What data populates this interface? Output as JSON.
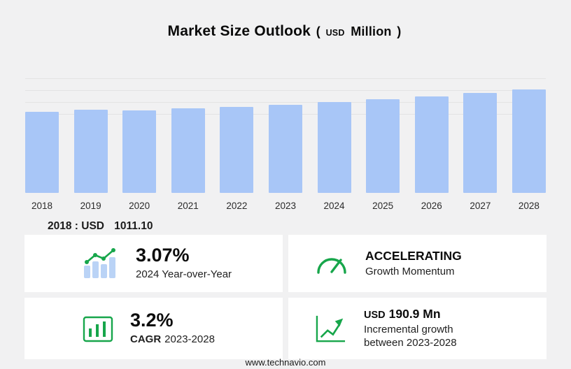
{
  "title": {
    "text": "Market Size Outlook",
    "open_paren": "(",
    "currency": "USD",
    "unit": "Million",
    "close_paren": ")"
  },
  "chart_data": {
    "type": "bar",
    "title": "Market Size Outlook (USD Million)",
    "categories": [
      "2018",
      "2019",
      "2020",
      "2021",
      "2022",
      "2023",
      "2024",
      "2025",
      "2026",
      "2027",
      "2028"
    ],
    "values": [
      1011.1,
      1040.0,
      1033.0,
      1055.0,
      1078.0,
      1100.3,
      1134.1,
      1169.0,
      1206.0,
      1247.0,
      1291.2
    ],
    "unit": "USD Million",
    "xlabel": "",
    "ylabel": "",
    "ylim": [
      0,
      1450
    ],
    "grid": true,
    "legend": "none",
    "bar_color": "#a8c6f7",
    "notes": "Only 2018 value labeled on screen (2018 : USD 1011.10); later values estimated from bar heights, 3.07% 2024 YoY, 3.2% CAGR 2023-2028, USD 190.9 Mn incremental growth 2023-2028"
  },
  "annotation": {
    "year_label": "2018 : USD",
    "value": "1011.10"
  },
  "stats": {
    "yoy": {
      "value": "3.07%",
      "label": "2024 Year-over-Year",
      "icon": "yoy-trend-icon"
    },
    "momentum": {
      "value": "ACCELERATING",
      "label": "Growth Momentum",
      "icon": "speedometer-icon"
    },
    "cagr": {
      "value": "3.2%",
      "label_prefix": "CAGR",
      "label_years": "2023-2028",
      "icon": "framed-bar-chart-icon"
    },
    "incremental": {
      "currency": "USD",
      "amount": "190.9 Mn",
      "label_line1": "Incremental growth",
      "label_line2": "between 2023-2028",
      "icon": "growth-arrow-icon"
    }
  },
  "footer": {
    "url": "www.technavio.com"
  },
  "colors": {
    "background": "#f1f1f2",
    "card": "#ffffff",
    "bar": "#a8c6f7",
    "bar_light": "#bad3f6",
    "green": "#17a64b",
    "text": "#111111"
  }
}
